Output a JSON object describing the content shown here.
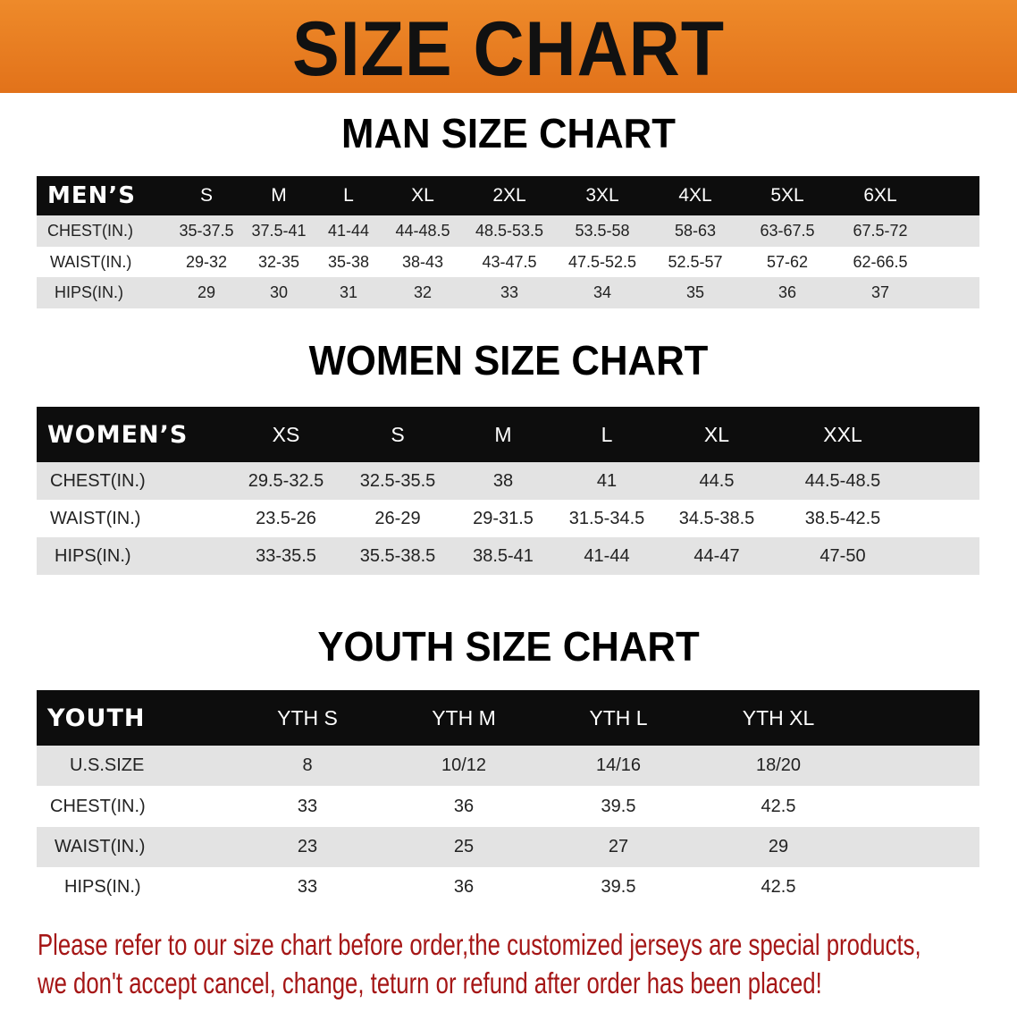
{
  "banner_title": "SIZE CHART",
  "men": {
    "title": "MAN SIZE CHART",
    "header_label": "MEN’S",
    "sizes": [
      "S",
      "M",
      "L",
      "XL",
      "2XL",
      "3XL",
      "4XL",
      "5XL",
      "6XL"
    ],
    "rows": [
      {
        "label": "CHEST(IN.)",
        "values": [
          "35-37.5",
          "37.5-41",
          "41-44",
          "44-48.5",
          "48.5-53.5",
          "53.5-58",
          "58-63",
          "63-67.5",
          "67.5-72"
        ]
      },
      {
        "label": "WAIST(IN.)",
        "values": [
          "29-32",
          "32-35",
          "35-38",
          "38-43",
          "43-47.5",
          "47.5-52.5",
          "52.5-57",
          "57-62",
          "62-66.5"
        ]
      },
      {
        "label": "HIPS(IN.)",
        "values": [
          "29",
          "30",
          "31",
          "32",
          "33",
          "34",
          "35",
          "36",
          "37"
        ]
      }
    ]
  },
  "women": {
    "title": "WOMEN SIZE CHART",
    "header_label": "WOMEN’S",
    "sizes": [
      "XS",
      "S",
      "M",
      "L",
      "XL",
      "XXL"
    ],
    "rows": [
      {
        "label": "CHEST(IN.)",
        "values": [
          "29.5-32.5",
          "32.5-35.5",
          "38",
          "41",
          "44.5",
          "44.5-48.5"
        ]
      },
      {
        "label": "WAIST(IN.)",
        "values": [
          "23.5-26",
          "26-29",
          "29-31.5",
          "31.5-34.5",
          "34.5-38.5",
          "38.5-42.5"
        ]
      },
      {
        "label": "HIPS(IN.)",
        "values": [
          "33-35.5",
          "35.5-38.5",
          "38.5-41",
          "41-44",
          "44-47",
          "47-50"
        ]
      }
    ]
  },
  "youth": {
    "title": "YOUTH SIZE CHART",
    "header_label": "YOUTH",
    "sizes": [
      "YTH S",
      "YTH M",
      "YTH L",
      "YTH XL"
    ],
    "rows": [
      {
        "label": "U.S.SIZE",
        "values": [
          "8",
          "10/12",
          "14/16",
          "18/20"
        ]
      },
      {
        "label": "CHEST(IN.)",
        "values": [
          "33",
          "36",
          "39.5",
          "42.5"
        ]
      },
      {
        "label": "WAIST(IN.)",
        "values": [
          "23",
          "25",
          "27",
          "29"
        ]
      },
      {
        "label": "HIPS(IN.)",
        "values": [
          "33",
          "36",
          "39.5",
          "42.5"
        ]
      }
    ]
  },
  "notice": {
    "line1": "Please refer to our size chart before order,the customized jerseys are special products,",
    "line2": "we don't accept cancel, change, teturn or refund after order has been placed!"
  },
  "colors": {
    "banner": "#e8781c",
    "header_row": "#0d0d0d",
    "stripe": "#e3e3e3",
    "notice": "#a51616"
  }
}
